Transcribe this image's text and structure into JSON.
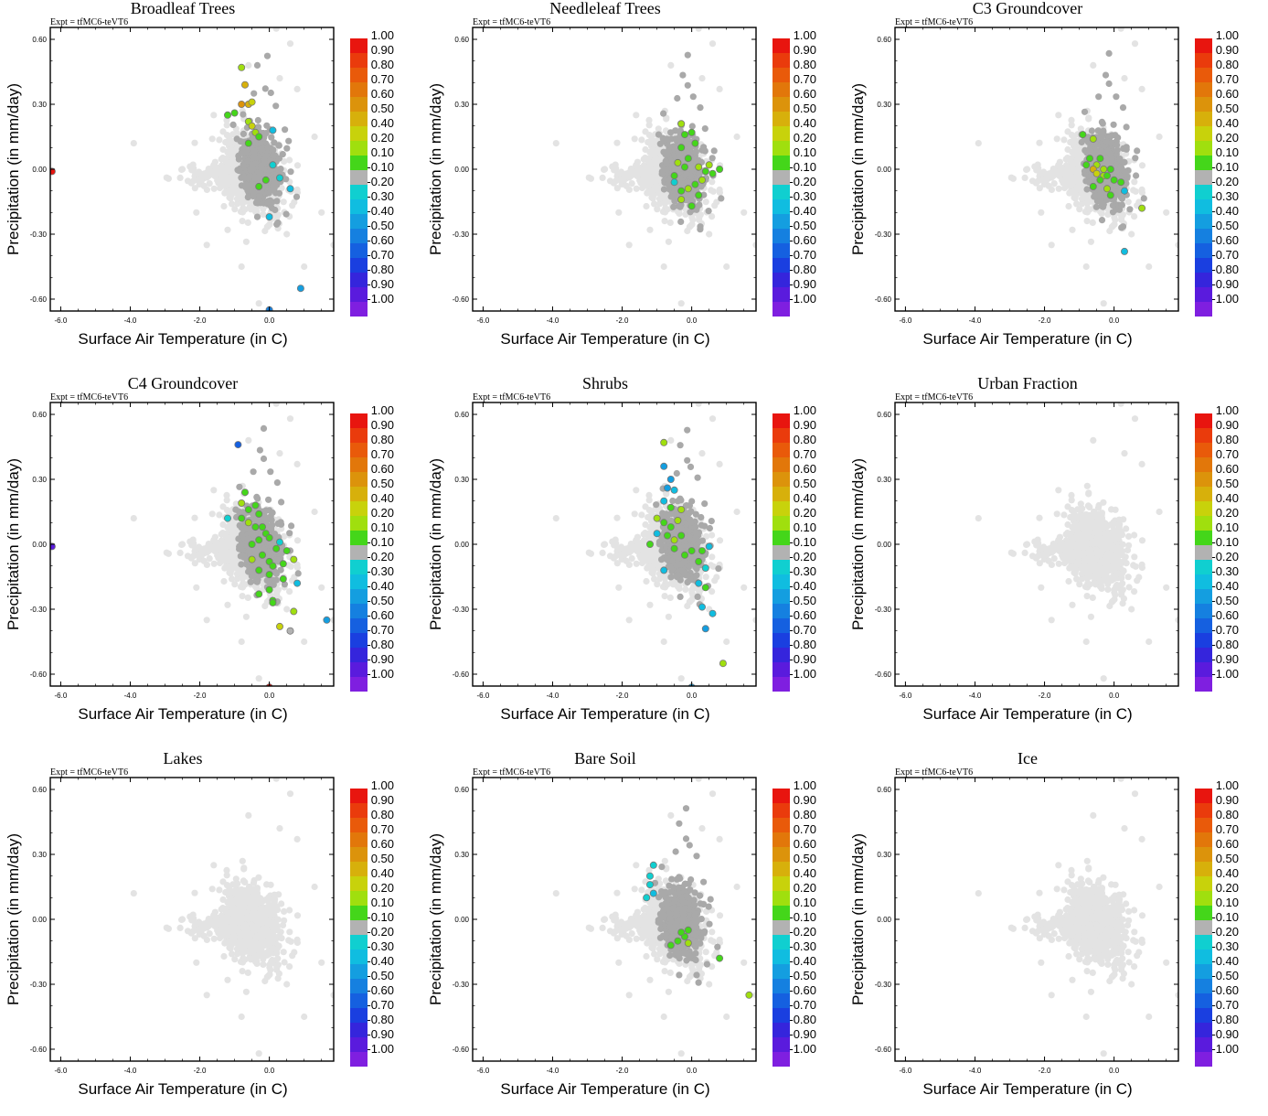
{
  "chart_data": {
    "type": "scatter",
    "layout": "3x3 grid of panels",
    "experiment_label": "Expt = tfMC6-teVT6",
    "xlabel": "Surface Air Temperature (in C)",
    "ylabel": "Precipitation (in mm/day)",
    "xlim": [
      -6.3,
      1.85
    ],
    "ylim": [
      -0.655,
      0.655
    ],
    "xticks": [
      "-6.0",
      "-4.0",
      "-2.0",
      "0.0"
    ],
    "xtick_values": [
      -6.0,
      -4.0,
      -2.0,
      0.0
    ],
    "yticks": [
      "0.60",
      "0.30",
      "0.00",
      "-0.30",
      "-0.60"
    ],
    "ytick_values": [
      0.6,
      0.3,
      0.0,
      -0.3,
      -0.6
    ],
    "colorbar": {
      "labels": [
        "1.00",
        "0.90",
        "0.80",
        "0.70",
        "0.60",
        "0.50",
        "0.40",
        "0.20",
        "0.10",
        "-0.10",
        "-0.20",
        "-0.30",
        "-0.40",
        "-0.50",
        "-0.60",
        "-0.70",
        "-0.80",
        "-0.90",
        "-1.00"
      ],
      "colors": [
        "#e8150f",
        "#ea3b0c",
        "#e95a0a",
        "#e2770a",
        "#dc930b",
        "#d7b00b",
        "#c8d20b",
        "#a0df0e",
        "#44d61a",
        "#b2b2b2",
        "#10cfd0",
        "#10bde0",
        "#149ee0",
        "#1580e0",
        "#1560e0",
        "#1a3fe0",
        "#3525dc",
        "#5a1bdd",
        "#7f1fe0"
      ]
    },
    "background_color": "#e3e3e3",
    "secondary_color": "#a9a9a9",
    "panels": [
      {
        "title": "Broadleaf Trees",
        "dark": true,
        "gray_extra": [
          [
            -0.1,
            -0.05
          ],
          [
            0.3,
            0.02
          ],
          [
            -0.3,
            0.2
          ]
        ],
        "colored": [
          [
            -0.8,
            0.47,
            7
          ],
          [
            -0.7,
            0.39,
            5
          ],
          [
            -0.8,
            0.3,
            4
          ],
          [
            -0.6,
            0.3,
            5
          ],
          [
            -0.5,
            0.31,
            6
          ],
          [
            -0.6,
            0.22,
            7
          ],
          [
            -1.0,
            0.26,
            8
          ],
          [
            -1.2,
            0.25,
            8
          ],
          [
            -0.5,
            0.2,
            6
          ],
          [
            -0.4,
            0.17,
            7
          ],
          [
            -0.6,
            0.12,
            8
          ],
          [
            -0.3,
            0.15,
            8
          ],
          [
            0.1,
            0.18,
            11
          ],
          [
            -0.1,
            -0.05,
            8
          ],
          [
            -0.3,
            -0.08,
            8
          ],
          [
            0.1,
            0.02,
            10
          ],
          [
            0.3,
            -0.04,
            10
          ],
          [
            0.6,
            -0.09,
            11
          ],
          [
            0.0,
            -0.22,
            11
          ],
          [
            0.9,
            -0.55,
            12
          ],
          [
            0.0,
            -0.65,
            13
          ],
          [
            -6.25,
            -0.01,
            0
          ]
        ]
      },
      {
        "title": "Needleleaf Trees",
        "dark": true,
        "gray_extra": [
          [
            -0.1,
            0.05
          ],
          [
            0.3,
            -0.1
          ]
        ],
        "colored": [
          [
            -0.3,
            0.21,
            7
          ],
          [
            -0.2,
            0.16,
            8
          ],
          [
            0.0,
            0.17,
            8
          ],
          [
            0.1,
            0.12,
            8
          ],
          [
            -0.3,
            0.1,
            8
          ],
          [
            -0.1,
            0.05,
            8
          ],
          [
            -0.4,
            0.03,
            7
          ],
          [
            -0.2,
            0.01,
            8
          ],
          [
            0.2,
            0.01,
            7
          ],
          [
            0.4,
            -0.01,
            8
          ],
          [
            0.5,
            0.02,
            7
          ],
          [
            0.6,
            -0.02,
            8
          ],
          [
            0.8,
            0.0,
            8
          ],
          [
            0.3,
            -0.05,
            7
          ],
          [
            0.1,
            -0.07,
            8
          ],
          [
            -0.1,
            -0.09,
            7
          ],
          [
            -0.3,
            -0.1,
            8
          ],
          [
            -0.5,
            -0.03,
            8
          ],
          [
            0.2,
            -0.12,
            8
          ],
          [
            0.0,
            -0.17,
            8
          ],
          [
            -0.3,
            -0.14,
            7
          ],
          [
            -0.5,
            -0.06,
            10
          ]
        ]
      },
      {
        "title": "C3 Groundcover",
        "dark": true,
        "gray_extra": [
          [
            -0.3,
            0.1
          ],
          [
            0.4,
            -0.1
          ]
        ],
        "colored": [
          [
            -0.9,
            0.16,
            8
          ],
          [
            -0.6,
            0.14,
            7
          ],
          [
            -0.7,
            0.05,
            8
          ],
          [
            -0.5,
            0.02,
            7
          ],
          [
            -0.4,
            0.05,
            8
          ],
          [
            -0.3,
            0.0,
            7
          ],
          [
            -0.6,
            0.0,
            5
          ],
          [
            -0.5,
            -0.02,
            6
          ],
          [
            -0.3,
            -0.03,
            7
          ],
          [
            -0.2,
            -0.03,
            8
          ],
          [
            -0.1,
            0.0,
            8
          ],
          [
            0.0,
            -0.05,
            8
          ],
          [
            0.2,
            -0.06,
            8
          ],
          [
            -0.4,
            -0.05,
            8
          ],
          [
            -0.6,
            -0.08,
            8
          ],
          [
            -0.2,
            -0.09,
            7
          ],
          [
            -0.1,
            -0.12,
            8
          ],
          [
            0.8,
            -0.18,
            7
          ],
          [
            0.3,
            -0.38,
            11
          ],
          [
            0.3,
            -0.1,
            11
          ],
          [
            -0.8,
            0.02,
            8
          ]
        ]
      },
      {
        "title": "C4 Groundcover",
        "dark": true,
        "gray_extra": [
          [
            -0.4,
            0.1
          ],
          [
            0.2,
            -0.1
          ]
        ],
        "colored": [
          [
            -0.9,
            0.46,
            14
          ],
          [
            -0.7,
            0.24,
            8
          ],
          [
            -0.8,
            0.19,
            7
          ],
          [
            -0.6,
            0.16,
            8
          ],
          [
            -0.4,
            0.18,
            8
          ],
          [
            -0.3,
            0.14,
            8
          ],
          [
            -0.8,
            0.12,
            8
          ],
          [
            -1.2,
            0.12,
            10
          ],
          [
            -0.6,
            0.1,
            7
          ],
          [
            -0.4,
            0.08,
            8
          ],
          [
            -0.2,
            0.08,
            8
          ],
          [
            -0.1,
            0.05,
            8
          ],
          [
            0.0,
            0.03,
            8
          ],
          [
            -0.3,
            0.02,
            8
          ],
          [
            -0.5,
            0.0,
            8
          ],
          [
            0.2,
            -0.02,
            8
          ],
          [
            0.5,
            -0.03,
            8
          ],
          [
            0.3,
            0.01,
            10
          ],
          [
            -0.2,
            -0.05,
            8
          ],
          [
            0.0,
            -0.08,
            8
          ],
          [
            -0.5,
            -0.07,
            7
          ],
          [
            0.4,
            -0.09,
            8
          ],
          [
            0.7,
            -0.07,
            7
          ],
          [
            0.1,
            -0.1,
            8
          ],
          [
            -0.3,
            -0.12,
            8
          ],
          [
            0.0,
            -0.14,
            8
          ],
          [
            0.4,
            -0.16,
            8
          ],
          [
            0.8,
            -0.18,
            11
          ],
          [
            0.0,
            -0.21,
            8
          ],
          [
            -0.3,
            -0.23,
            8
          ],
          [
            0.1,
            -0.26,
            8
          ],
          [
            0.1,
            -0.27,
            8
          ],
          [
            0.7,
            -0.31,
            7
          ],
          [
            0.3,
            -0.38,
            6
          ],
          [
            1.65,
            -0.35,
            12
          ],
          [
            0.0,
            -0.66,
            0
          ],
          [
            -6.25,
            -0.01,
            17
          ],
          [
            0.6,
            -0.4,
            9
          ]
        ]
      },
      {
        "title": "Shrubs",
        "dark": true,
        "gray_extra": [
          [
            -0.2,
            0.05
          ]
        ],
        "colored": [
          [
            -0.8,
            0.47,
            7
          ],
          [
            -0.8,
            0.36,
            12
          ],
          [
            -0.6,
            0.3,
            12
          ],
          [
            -0.7,
            0.26,
            12
          ],
          [
            -0.5,
            0.25,
            11
          ],
          [
            -0.6,
            0.17,
            8
          ],
          [
            -0.8,
            0.2,
            11
          ],
          [
            -0.3,
            0.16,
            7
          ],
          [
            -1.0,
            0.12,
            7
          ],
          [
            -0.8,
            0.1,
            8
          ],
          [
            -0.6,
            0.08,
            8
          ],
          [
            -0.4,
            0.11,
            7
          ],
          [
            -0.3,
            0.04,
            8
          ],
          [
            -0.5,
            0.02,
            7
          ],
          [
            -0.7,
            0.04,
            8
          ],
          [
            -0.5,
            -0.02,
            8
          ],
          [
            -0.2,
            -0.05,
            8
          ],
          [
            0.0,
            -0.03,
            8
          ],
          [
            0.3,
            -0.03,
            8
          ],
          [
            0.5,
            -0.01,
            11
          ],
          [
            0.2,
            -0.08,
            8
          ],
          [
            0.4,
            -0.11,
            10
          ],
          [
            0.2,
            -0.18,
            11
          ],
          [
            0.4,
            -0.2,
            8
          ],
          [
            0.3,
            -0.29,
            11
          ],
          [
            0.6,
            -0.32,
            11
          ],
          [
            0.4,
            -0.39,
            12
          ],
          [
            0.0,
            -0.66,
            12
          ],
          [
            0.9,
            -0.55,
            7
          ],
          [
            -1.0,
            0.05,
            11
          ],
          [
            -1.2,
            0.0,
            8
          ],
          [
            -0.8,
            -0.12,
            11
          ]
        ]
      },
      {
        "title": "Urban Fraction",
        "dark": false,
        "gray_extra": [],
        "colored": []
      },
      {
        "title": "Lakes",
        "dark": false,
        "gray_extra": [],
        "colored": []
      },
      {
        "title": "Bare Soil",
        "dark": true,
        "gray_extra": [
          [
            -0.4,
            -0.05
          ]
        ],
        "colored": [
          [
            -1.1,
            0.25,
            10
          ],
          [
            -1.2,
            0.2,
            10
          ],
          [
            -1.2,
            0.16,
            10
          ],
          [
            -1.3,
            0.1,
            10
          ],
          [
            -1.1,
            0.12,
            11
          ],
          [
            -0.1,
            -0.05,
            8
          ],
          [
            -0.2,
            -0.08,
            8
          ],
          [
            -0.4,
            -0.1,
            8
          ],
          [
            -0.1,
            -0.11,
            7
          ],
          [
            -0.6,
            -0.12,
            8
          ],
          [
            0.8,
            -0.18,
            8
          ],
          [
            1.65,
            -0.35,
            7
          ],
          [
            -0.3,
            -0.06,
            8
          ]
        ]
      },
      {
        "title": "Ice",
        "dark": false,
        "gray_extra": [],
        "colored": []
      }
    ]
  }
}
